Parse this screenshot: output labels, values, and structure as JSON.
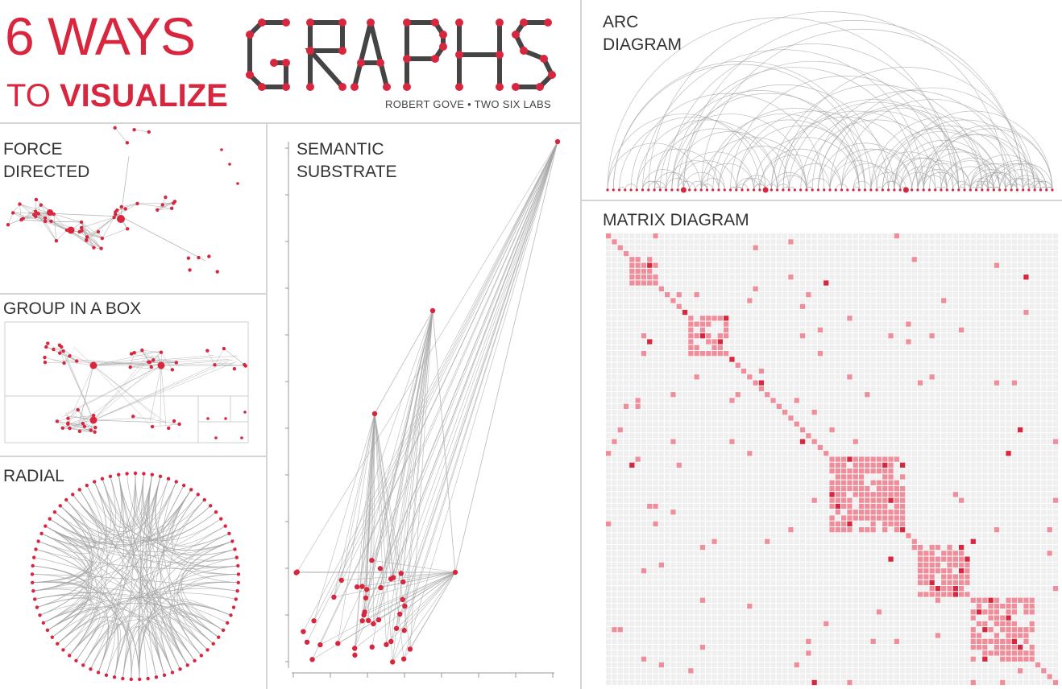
{
  "title": {
    "line1": "6 WAYS",
    "line2_prefix": "TO",
    "line2_strong": "VISUALIZE",
    "logo_word": "GRAPHS",
    "byline": "ROBERT GOVE • TWO SIX LABS"
  },
  "panels": {
    "force": {
      "line1": "FORCE",
      "line2": "DIRECTED"
    },
    "group": {
      "line1": "GROUP IN A BOX"
    },
    "radial": {
      "line1": "RADIAL"
    },
    "semantic": {
      "line1": "SEMANTIC",
      "line2": "SUBSTRATE"
    },
    "arc": {
      "line1": "ARC",
      "line2": "DIAGRAM"
    },
    "matrix": {
      "line1": "MATRIX DIAGRAM"
    }
  },
  "colors": {
    "accent": "#d7263d",
    "link": "#a6a6a6",
    "grid": "#efefef",
    "text": "#333333"
  }
}
